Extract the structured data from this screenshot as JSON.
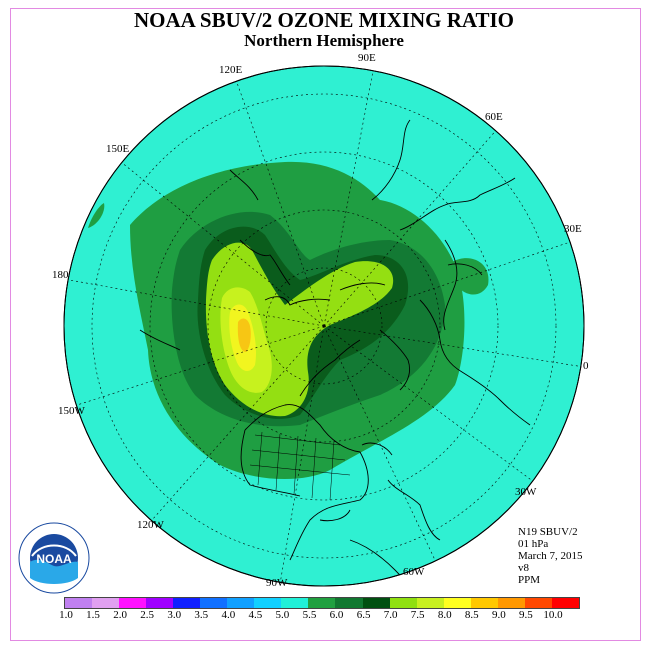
{
  "title": "NOAA SBUV/2 OZONE MIXING RATIO",
  "subtitle": "Northern Hemisphere",
  "longitude_labels": {
    "e120": "120E",
    "e90": "90E",
    "e60": "60E",
    "e30": "30E",
    "e150": "150E",
    "lon180": "180",
    "lon0": "0",
    "w150": "150W",
    "w120": "120W",
    "w90": "90W",
    "w60": "60W",
    "w30": "30W"
  },
  "info": {
    "instrument": "N19 SBUV/2",
    "level": "01 hPa",
    "date": "March 7, 2015",
    "version": "v8",
    "units": "PPM"
  },
  "logo": {
    "text": "NOAA",
    "ring_text": "NATIONAL OCEANIC AND ATMOSPHERIC ADMINISTRATION · U.S. DEPARTMENT OF COMMERCE"
  },
  "colorbar": {
    "ticks": [
      "1.0",
      "1.5",
      "2.0",
      "2.5",
      "3.0",
      "3.5",
      "4.0",
      "4.5",
      "5.0",
      "5.5",
      "6.0",
      "6.5",
      "7.0",
      "7.5",
      "8.0",
      "8.5",
      "9.0",
      "9.5",
      "10.0"
    ],
    "colors": [
      "#c080f0",
      "#e0a0f0",
      "#ff10ff",
      "#a000ff",
      "#1020ff",
      "#1070ff",
      "#10a0ff",
      "#10d0ff",
      "#20f0d8",
      "#20a040",
      "#107830",
      "#005010",
      "#90e010",
      "#c8f020",
      "#ffff20",
      "#ffc800",
      "#ff9800",
      "#ff4800",
      "#ff0000",
      "#a06040"
    ]
  },
  "colors": {
    "background_ppm_4_5_to_5": "#2ff0d2",
    "ppm_5_to_5_5": "#1f9e42",
    "ppm_5_5_to_6": "#137a34",
    "ppm_6_to_6_5": "#0a5c1c",
    "ppm_6_5_to_7": "#94df12",
    "ppm_7_to_7_5": "#c7f21e",
    "ppm_7_5_to_8": "#f2f51f",
    "ppm_8_to_8_5": "#f7c614"
  }
}
